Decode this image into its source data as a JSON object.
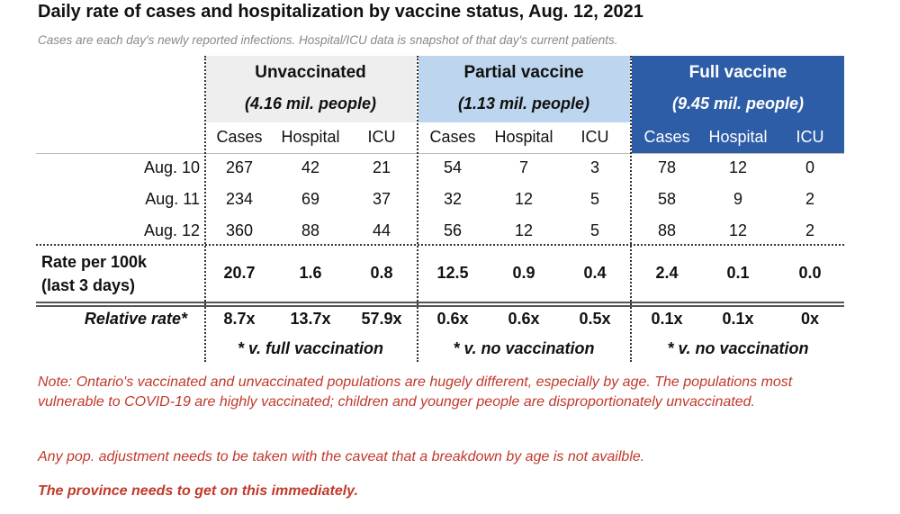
{
  "title": "Daily rate of cases and hospitalization by vaccine status, Aug. 12, 2021",
  "subtitle": "Cases are each day's newly reported infections. Hospital/ICU data is snapshot of that day's current patients.",
  "table": {
    "groups": [
      {
        "name": "Unvaccinated",
        "population": "(4.16 mil. people)",
        "columns": [
          "Cases",
          "Hospital",
          "ICU"
        ],
        "footnote": "* v. full vaccination"
      },
      {
        "name": "Partial vaccine",
        "population": "(1.13 mil. people)",
        "columns": [
          "Cases",
          "Hospital",
          "ICU"
        ],
        "footnote": "* v. no vaccination"
      },
      {
        "name": "Full vaccine",
        "population": "(9.45 mil. people)",
        "columns": [
          "Cases",
          "Hospital",
          "ICU"
        ],
        "footnote": "* v. no vaccination"
      }
    ],
    "rows": [
      {
        "label": "Aug. 10",
        "cells": [
          "267",
          "42",
          "21",
          "54",
          "7",
          "3",
          "78",
          "12",
          "0"
        ]
      },
      {
        "label": "Aug. 11",
        "cells": [
          "234",
          "69",
          "37",
          "32",
          "12",
          "5",
          "58",
          "9",
          "2"
        ]
      },
      {
        "label": "Aug. 12",
        "cells": [
          "360",
          "88",
          "44",
          "56",
          "12",
          "5",
          "88",
          "12",
          "2"
        ]
      }
    ],
    "rate": {
      "label": [
        "Rate per 100k",
        "(last 3 days)"
      ],
      "cells": [
        "20.7",
        "1.6",
        "0.8",
        "12.5",
        "0.9",
        "0.4",
        "2.4",
        "0.1",
        "0.0"
      ]
    },
    "relative": {
      "label": "Relative rate*",
      "cells": [
        "8.7x",
        "13.7x",
        "57.9x",
        "0.6x",
        "0.6x",
        "0.5x",
        "0.1x",
        "0.1x",
        "0x"
      ]
    }
  },
  "notes": [
    "Note: Ontario's vaccinated and unvaccinated populations are hugely different, especially by age. The populations most vulnerable to COVID-19 are highly vaccinated; children and younger people are disproportionately unvaccinated.",
    "Any pop. adjustment needs to be taken with the caveat that a breakdown by age is not availble.",
    "The province needs to get on this immediately."
  ]
}
